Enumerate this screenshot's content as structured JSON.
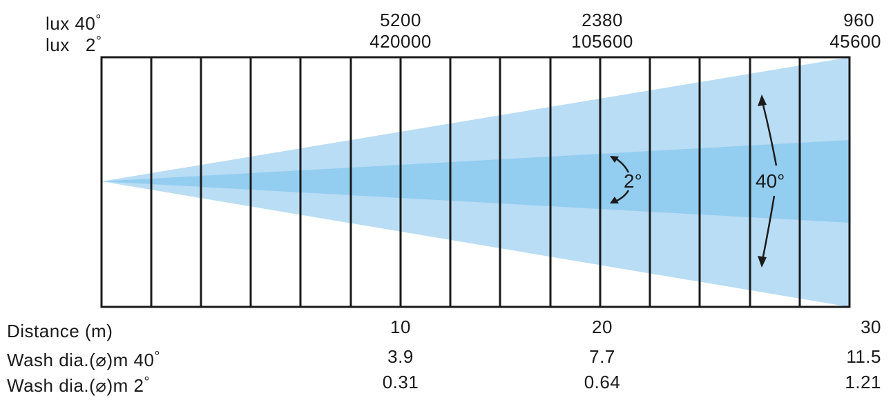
{
  "header": {
    "lux40_label": "lux 40",
    "lux2_label": "lux",
    "lux2_angle": "2",
    "degree": "°"
  },
  "lux_40": [
    "5200",
    "2380",
    "960"
  ],
  "lux_2": [
    "420000",
    "105600",
    "45600"
  ],
  "beam_labels": {
    "narrow": "2°",
    "wide": "40°"
  },
  "table": {
    "distance_label": "Distance (m)",
    "wash40_label": "Wash dia.(⌀)m 40",
    "wash2_label": "Wash dia.(⌀)m 2",
    "distance": [
      "10",
      "20",
      "30"
    ],
    "wash_40": [
      "3.9",
      "7.7",
      "11.5"
    ],
    "wash_2": [
      "0.31",
      "0.64",
      "1.21"
    ]
  },
  "chart_data": {
    "type": "table",
    "x": [
      10,
      20,
      30
    ],
    "xlabel": "Distance (m)",
    "series": [
      {
        "name": "lux 40°",
        "values": [
          5200,
          2380,
          960
        ]
      },
      {
        "name": "lux 2°",
        "values": [
          420000,
          105600,
          45600
        ]
      },
      {
        "name": "Wash dia.(⌀)m 40°",
        "values": [
          3.9,
          7.7,
          11.5
        ]
      },
      {
        "name": "Wash dia.(⌀)m 2°",
        "values": [
          0.31,
          0.64,
          1.21
        ]
      }
    ]
  },
  "colors": {
    "wide_beam": "#b9ddf5",
    "narrow_beam": "#93cdef",
    "grid": "#1a1a1a"
  }
}
